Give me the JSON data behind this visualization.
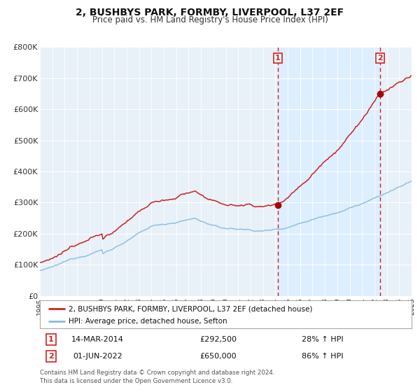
{
  "title": "2, BUSHBYS PARK, FORMBY, LIVERPOOL, L37 2EF",
  "subtitle": "Price paid vs. HM Land Registry's House Price Index (HPI)",
  "legend_line1": "2, BUSHBYS PARK, FORMBY, LIVERPOOL, L37 2EF (detached house)",
  "legend_line2": "HPI: Average price, detached house, Sefton",
  "transaction1_date": "14-MAR-2014",
  "transaction1_price": 292500,
  "transaction1_hpi": "28% ↑ HPI",
  "transaction2_date": "01-JUN-2022",
  "transaction2_price": 650000,
  "transaction2_hpi": "86% ↑ HPI",
  "ylabel_ticks": [
    "£0",
    "£100K",
    "£200K",
    "£300K",
    "£400K",
    "£500K",
    "£600K",
    "£700K",
    "£800K"
  ],
  "ytick_vals": [
    0,
    100000,
    200000,
    300000,
    400000,
    500000,
    600000,
    700000,
    800000
  ],
  "ylim": [
    0,
    800000
  ],
  "hpi_color": "#88bbdd",
  "price_color": "#cc2222",
  "dot_color": "#aa0000",
  "vline_color": "#cc2222",
  "shade_color": "#ddeeff",
  "bg_color": "#e8f0f8",
  "grid_color": "#ffffff",
  "footer": "Contains HM Land Registry data © Crown copyright and database right 2024.\nThis data is licensed under the Open Government Licence v3.0.",
  "transaction1_x": 2014.2,
  "transaction2_x": 2022.45,
  "xmin": 1995,
  "xmax": 2025
}
